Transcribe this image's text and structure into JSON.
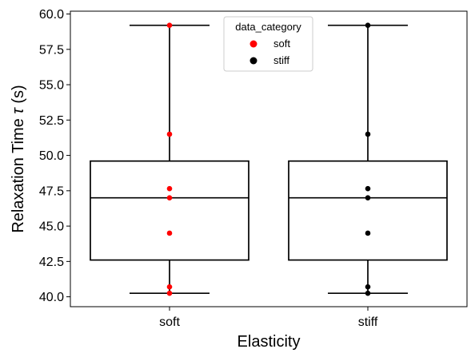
{
  "chart_data": {
    "type": "box",
    "xlabel": "Elasticity",
    "ylabel_text": "Relaxation Time ",
    "ylabel_symbol": "τ",
    "ylabel_unit": "(s)",
    "ylim": [
      39.3,
      60.2
    ],
    "yticks": [
      40.0,
      42.5,
      45.0,
      47.5,
      50.0,
      52.5,
      55.0,
      57.5,
      60.0
    ],
    "ytick_labels": [
      "40.0",
      "42.5",
      "45.0",
      "47.5",
      "50.0",
      "52.5",
      "55.0",
      "57.5",
      "60.0"
    ],
    "categories": [
      "soft",
      "stiff"
    ],
    "boxes": [
      {
        "category": "soft",
        "whislo": 40.25,
        "q1": 42.6,
        "median": 47.0,
        "q3": 49.6,
        "whishi": 59.2
      },
      {
        "category": "stiff",
        "whislo": 40.25,
        "q1": 42.6,
        "median": 47.0,
        "q3": 49.6,
        "whishi": 59.2
      }
    ],
    "series": [
      {
        "name": "soft",
        "category": "soft",
        "color": "#ff0000",
        "values": [
          59.2,
          51.5,
          47.65,
          47.0,
          44.5,
          40.7,
          40.25
        ]
      },
      {
        "name": "stiff",
        "category": "stiff",
        "color": "#000000",
        "values": [
          59.2,
          51.5,
          47.65,
          47.0,
          44.5,
          40.7,
          40.25
        ]
      }
    ],
    "legend": {
      "title": "data_category",
      "position": "top-center",
      "entries": [
        {
          "label": "soft",
          "color": "#ff0000"
        },
        {
          "label": "stiff",
          "color": "#000000"
        }
      ]
    },
    "grid": false
  }
}
